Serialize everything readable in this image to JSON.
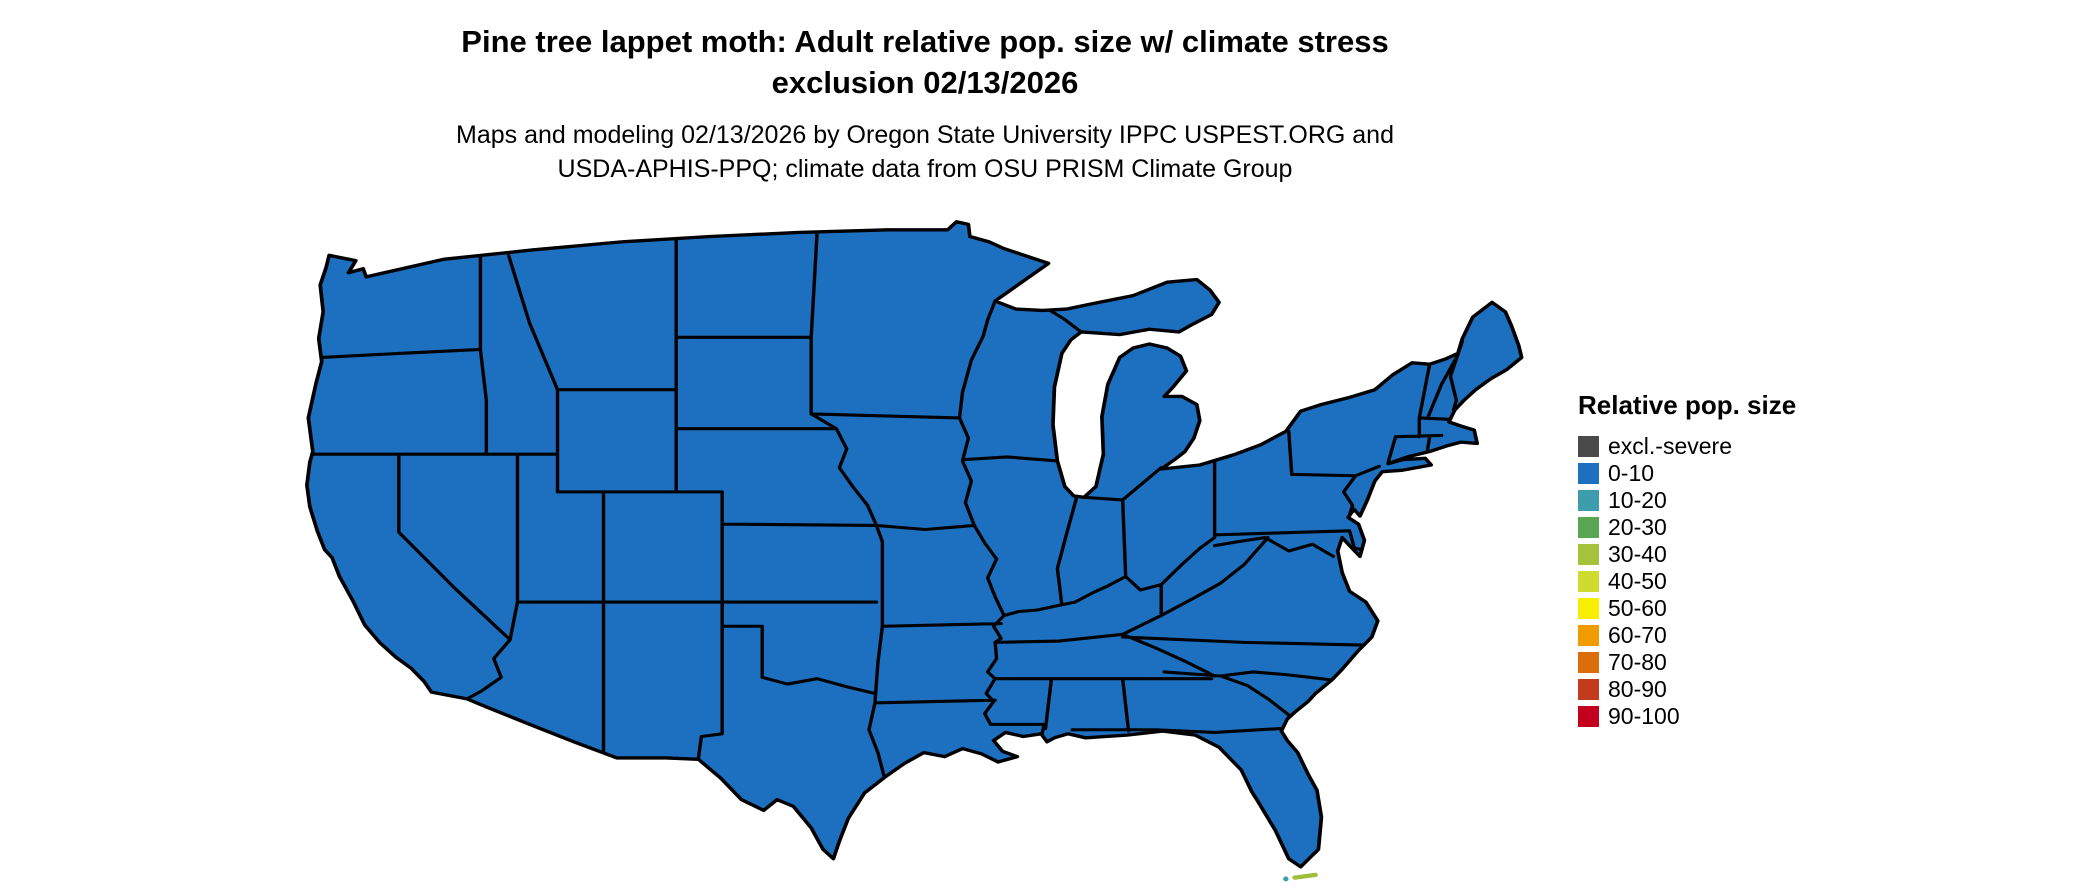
{
  "title": {
    "text": "Pine tree lappet moth: Adult relative pop. size w/ climate stress\nexclusion 02/13/2026"
  },
  "subtitle": {
    "text": "Maps and modeling 02/13/2026 by Oregon State University IPPC USPEST.ORG and\nUSDA-APHIS-PPQ; climate data from OSU PRISM Climate Group"
  },
  "legend": {
    "title": "Relative pop. size",
    "items": [
      {
        "label": "excl.-severe",
        "color": "#4a4a4a"
      },
      {
        "label": "0-10",
        "color": "#1d6fc0"
      },
      {
        "label": "10-20",
        "color": "#3d9dad"
      },
      {
        "label": "20-30",
        "color": "#58a553"
      },
      {
        "label": "30-40",
        "color": "#a4c23c"
      },
      {
        "label": "40-50",
        "color": "#cfdc2e"
      },
      {
        "label": "50-60",
        "color": "#f9ee00"
      },
      {
        "label": "60-70",
        "color": "#f09c00"
      },
      {
        "label": "70-80",
        "color": "#dc6e0a"
      },
      {
        "label": "80-90",
        "color": "#c43a1c"
      },
      {
        "label": "90-100",
        "color": "#c4001f"
      }
    ]
  },
  "map": {
    "region": "Contiguous United States choropleth",
    "uniform_bin": "0-10",
    "land_fill": "#1d6fc0",
    "border_color": "#000000",
    "background": "#ffffff",
    "specks": [
      {
        "name": "florida-keys",
        "color": "#9ebf3b"
      },
      {
        "name": "florida-keys-west",
        "color": "#3d9dad"
      }
    ]
  }
}
